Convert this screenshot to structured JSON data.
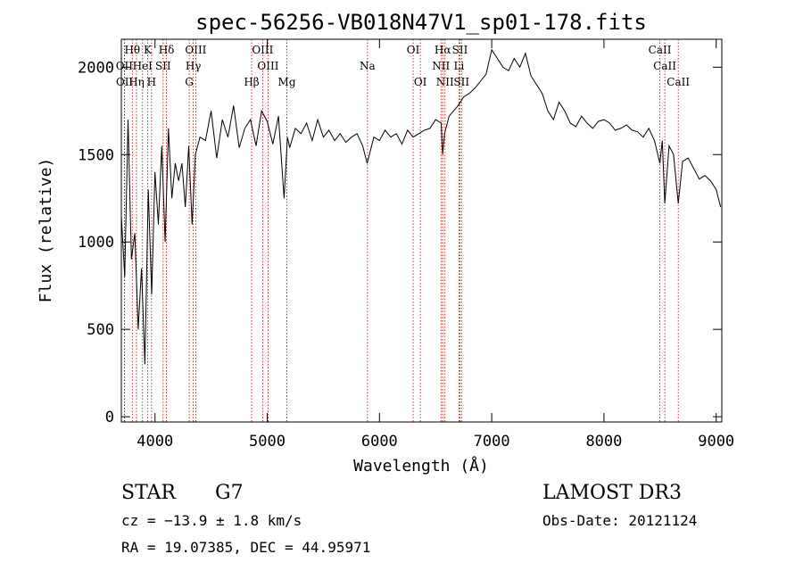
{
  "chart_data": {
    "type": "line",
    "title": "spec-56256-VB018N47V1_sp01-178.fits",
    "xlabel": "Wavelength (Å)",
    "ylabel": "Flux (relative)",
    "xlim": [
      3700,
      9050
    ],
    "ylim": [
      -30,
      2160
    ],
    "xticks": [
      4000,
      5000,
      6000,
      7000,
      8000,
      9000
    ],
    "yticks": [
      0,
      500,
      1000,
      1500,
      2000
    ],
    "grid": false,
    "series": [
      {
        "x": [
          3700,
          3730,
          3760,
          3790,
          3820,
          3850,
          3880,
          3910,
          3940,
          3970,
          4000,
          4030,
          4060,
          4090,
          4120,
          4150,
          4180,
          4210,
          4240,
          4270,
          4300,
          4330,
          4360,
          4400,
          4450,
          4500,
          4550,
          4600,
          4650,
          4700,
          4750,
          4800,
          4850,
          4900,
          4950,
          5000,
          5050,
          5100,
          5150,
          5180,
          5200,
          5250,
          5300,
          5350,
          5400,
          5450,
          5500,
          5550,
          5600,
          5650,
          5700,
          5750,
          5800,
          5850,
          5890,
          5950,
          6000,
          6050,
          6100,
          6150,
          6200,
          6250,
          6300,
          6350,
          6400,
          6450,
          6500,
          6550,
          6563,
          6580,
          6620,
          6660,
          6700,
          6750,
          6800,
          6850,
          6900,
          6950,
          7000,
          7050,
          7100,
          7150,
          7200,
          7250,
          7300,
          7350,
          7400,
          7450,
          7500,
          7550,
          7600,
          7650,
          7700,
          7750,
          7800,
          7850,
          7900,
          7950,
          8000,
          8050,
          8100,
          8150,
          8200,
          8250,
          8300,
          8350,
          8400,
          8450,
          8498,
          8520,
          8542,
          8580,
          8620,
          8662,
          8700,
          8750,
          8800,
          8850,
          8900,
          8950,
          9000,
          9040
        ],
        "y": [
          1150,
          800,
          1700,
          900,
          1050,
          500,
          850,
          300,
          1300,
          700,
          1400,
          1100,
          1550,
          1000,
          1650,
          1250,
          1450,
          1350,
          1450,
          1200,
          1550,
          1100,
          1500,
          1600,
          1580,
          1750,
          1480,
          1700,
          1600,
          1780,
          1540,
          1650,
          1700,
          1550,
          1750,
          1690,
          1560,
          1720,
          1250,
          1600,
          1540,
          1650,
          1620,
          1680,
          1580,
          1700,
          1600,
          1640,
          1580,
          1620,
          1570,
          1600,
          1620,
          1550,
          1450,
          1600,
          1580,
          1640,
          1600,
          1620,
          1560,
          1640,
          1600,
          1620,
          1640,
          1650,
          1700,
          1680,
          1500,
          1620,
          1720,
          1750,
          1780,
          1830,
          1850,
          1880,
          1920,
          1960,
          2100,
          2050,
          2000,
          1980,
          2050,
          2000,
          2080,
          1950,
          1900,
          1850,
          1750,
          1700,
          1800,
          1750,
          1680,
          1660,
          1720,
          1680,
          1650,
          1690,
          1700,
          1680,
          1640,
          1650,
          1670,
          1640,
          1630,
          1600,
          1650,
          1580,
          1450,
          1580,
          1220,
          1550,
          1500,
          1220,
          1460,
          1480,
          1420,
          1360,
          1380,
          1350,
          1300,
          1200
        ]
      }
    ],
    "lines": [
      {
        "label": "Hθ",
        "x": 3798,
        "row": 0
      },
      {
        "label": "K",
        "x": 3934,
        "row": 0
      },
      {
        "label": "Hδ",
        "x": 4102,
        "row": 0
      },
      {
        "label": "OIII",
        "x": 4363,
        "row": 0
      },
      {
        "label": "OIII",
        "x": 4959,
        "row": 0
      },
      {
        "label": "OI",
        "x": 6300,
        "row": 0
      },
      {
        "label": "Hα",
        "x": 6563,
        "row": 0
      },
      {
        "label": "SII",
        "x": 6717,
        "row": 0
      },
      {
        "label": "CaII",
        "x": 8498,
        "row": 0
      },
      {
        "label": "OII",
        "x": 3727,
        "row": 1
      },
      {
        "label": "HeI",
        "x": 3889,
        "row": 1
      },
      {
        "label": "SII",
        "x": 4072,
        "row": 1
      },
      {
        "label": "Hγ",
        "x": 4341,
        "row": 1
      },
      {
        "label": "OIII",
        "x": 5007,
        "row": 1
      },
      {
        "label": "Na",
        "x": 5893,
        "row": 1
      },
      {
        "label": "NII",
        "x": 6548,
        "row": 1
      },
      {
        "label": "Li",
        "x": 6708,
        "row": 1
      },
      {
        "label": "CaII",
        "x": 8542,
        "row": 1
      },
      {
        "label": "OII",
        "x": 3729,
        "row": 2
      },
      {
        "label": "Hη",
        "x": 3835,
        "row": 2
      },
      {
        "label": "H",
        "x": 3969,
        "row": 2
      },
      {
        "label": "G",
        "x": 4305,
        "row": 2
      },
      {
        "label": "Hβ",
        "x": 4861,
        "row": 2
      },
      {
        "label": "Mg",
        "x": 5175,
        "row": 2
      },
      {
        "label": "OI",
        "x": 6364,
        "row": 2
      },
      {
        "label": "NII",
        "x": 6584,
        "row": 2
      },
      {
        "label": "SII",
        "x": 6731,
        "row": 2
      },
      {
        "label": "CaII",
        "x": 8662,
        "row": 2
      }
    ]
  },
  "info": {
    "object_type": "STAR",
    "subclass": "G7",
    "survey": "LAMOST DR3",
    "cz": "cz = −13.9 ± 1.8 km/s",
    "obs_date": "Obs-Date: 20121124",
    "coords": "RA =  19.07385, DEC =  44.95971"
  }
}
